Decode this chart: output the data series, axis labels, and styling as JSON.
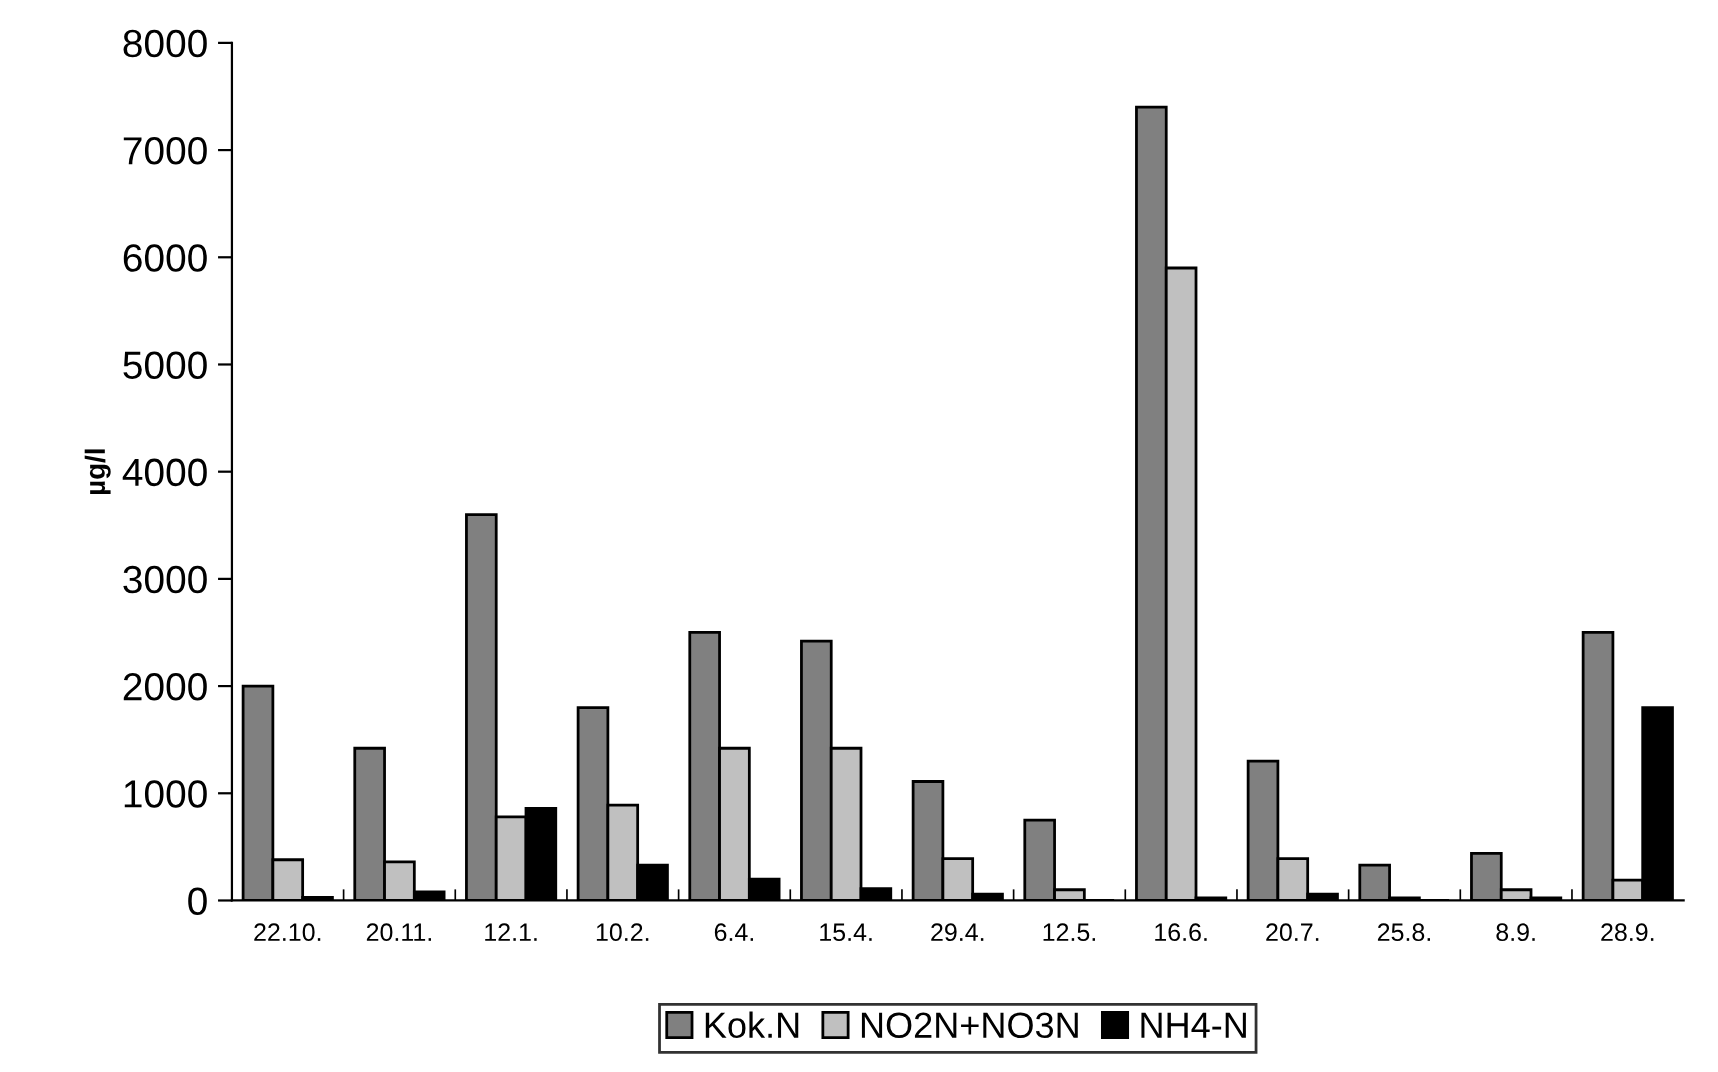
{
  "chart_data": {
    "type": "bar",
    "ylabel": "µg/l",
    "categories": [
      "22.10.",
      "20.11.",
      "12.1.",
      "10.2.",
      "6.4.",
      "15.4.",
      "29.4.",
      "12.5.",
      "16.6.",
      "20.7.",
      "25.8.",
      "8.9.",
      "28.9."
    ],
    "series": [
      {
        "name": "Kok.N",
        "color": "#808080",
        "values": [
          2000,
          1420,
          3600,
          1800,
          2500,
          2420,
          1110,
          750,
          7400,
          1300,
          330,
          440,
          2500
        ]
      },
      {
        "name": "NO2N+NO3N",
        "color": "#c0c0c0",
        "values": [
          380,
          360,
          780,
          890,
          1420,
          1420,
          390,
          100,
          5900,
          390,
          25,
          100,
          190
        ]
      },
      {
        "name": "NH4-N",
        "color": "#000000",
        "values": [
          30,
          80,
          860,
          330,
          200,
          110,
          60,
          0,
          25,
          60,
          0,
          25,
          1800
        ]
      }
    ],
    "ylim": [
      0,
      8000
    ],
    "yticks": [
      0,
      1000,
      2000,
      3000,
      4000,
      5000,
      6000,
      7000,
      8000
    ],
    "grid": false,
    "legend": "bottom"
  }
}
